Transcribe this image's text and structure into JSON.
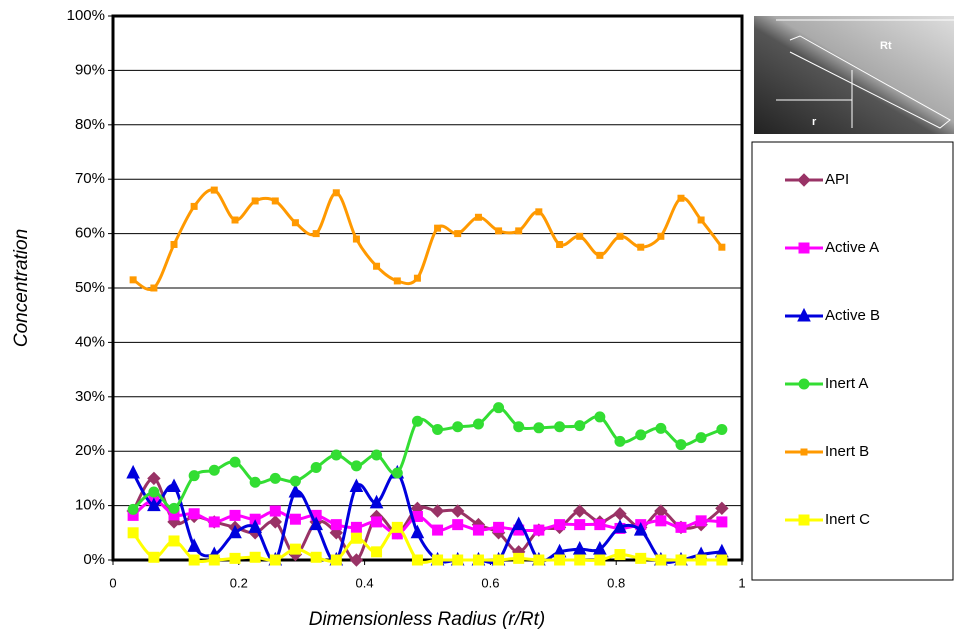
{
  "chart_data": {
    "type": "line",
    "x_label": "Dimensionless Radius (r/Rt)",
    "y_label": "Concentration",
    "inset_labels": [
      "Rt",
      "r"
    ],
    "x": [
      0.032,
      0.065,
      0.097,
      0.129,
      0.161,
      0.194,
      0.226,
      0.258,
      0.29,
      0.323,
      0.355,
      0.387,
      0.419,
      0.452,
      0.484,
      0.516,
      0.548,
      0.581,
      0.613,
      0.645,
      0.677,
      0.71,
      0.742,
      0.774,
      0.806,
      0.839,
      0.871,
      0.903,
      0.935,
      0.968
    ],
    "series": [
      {
        "name": "API",
        "color": "#993366",
        "marker": "diamond",
        "values": [
          9,
          15,
          7,
          8,
          7,
          6,
          5,
          7,
          1,
          7,
          5,
          0,
          8,
          5,
          9.5,
          9,
          9,
          6.5,
          5,
          1.5,
          5.5,
          6,
          9,
          7,
          8.5,
          6,
          9,
          6,
          6.5,
          9.5
        ]
      },
      {
        "name": "Active A",
        "color": "#ff00ff",
        "marker": "square",
        "values": [
          8.2,
          11,
          8.3,
          8.5,
          7,
          8.2,
          7.5,
          9,
          7.5,
          8.2,
          6.5,
          6,
          7,
          4.8,
          8,
          5.5,
          6.5,
          5.5,
          6,
          5.5,
          5.5,
          6.5,
          6.5,
          6.5,
          5.8,
          6.5,
          7.2,
          6,
          7.2,
          7
        ]
      },
      {
        "name": "Active B",
        "color": "#0000dd",
        "marker": "triangle",
        "values": [
          16,
          10,
          13.5,
          2.5,
          1,
          5,
          6,
          0,
          12.5,
          6.5,
          0,
          13.5,
          10.5,
          16,
          5,
          0,
          0,
          0,
          0,
          6.5,
          0,
          1.5,
          2,
          2,
          6,
          5.5,
          0,
          0,
          1,
          1.5
        ]
      },
      {
        "name": "Inert A",
        "color": "#33dd33",
        "marker": "circle",
        "values": [
          9.3,
          12.5,
          9.5,
          15.5,
          16.5,
          18,
          14.3,
          15,
          14.5,
          17,
          19.3,
          17.3,
          19.3,
          16,
          25.5,
          24,
          24.5,
          25,
          28,
          24.5,
          24.3,
          24.5,
          24.7,
          26.3,
          21.8,
          23,
          24.2,
          21.2,
          22.5,
          24
        ]
      },
      {
        "name": "Inert B",
        "color": "#ff9900",
        "marker": "small-square",
        "values": [
          51.5,
          50,
          58,
          65,
          68,
          62.5,
          66,
          66,
          62,
          60,
          67.5,
          59,
          54,
          51.3,
          51.8,
          61,
          60,
          63,
          60.5,
          60.5,
          64,
          58,
          59.5,
          56,
          59.5,
          57.5,
          59.5,
          66.5,
          62.5,
          57.5
        ]
      },
      {
        "name": "Inert C",
        "color": "#ffff00",
        "marker": "square",
        "values": [
          5,
          0.5,
          3.5,
          0,
          0,
          0.3,
          0.5,
          0,
          2,
          0.5,
          0,
          4,
          1.5,
          6,
          0,
          0,
          0,
          0,
          0,
          0.3,
          0,
          0,
          0,
          0,
          1,
          0.3,
          0,
          0,
          0,
          0
        ]
      }
    ],
    "xlim": [
      0,
      1
    ],
    "xticks": [
      0,
      0.2,
      0.4,
      0.6,
      0.8,
      1
    ],
    "ylim": [
      0,
      100
    ],
    "yticks": [
      {
        "value": 0,
        "label": "0%"
      },
      {
        "value": 10,
        "label": "10%"
      },
      {
        "value": 20,
        "label": "20%"
      },
      {
        "value": 30,
        "label": "30%"
      },
      {
        "value": 40,
        "label": "40%"
      },
      {
        "value": 50,
        "label": "50%"
      },
      {
        "value": 60,
        "label": "60%"
      },
      {
        "value": 70,
        "label": "70%"
      },
      {
        "value": 80,
        "label": "80%"
      },
      {
        "value": 90,
        "label": "90%"
      },
      {
        "value": 100,
        "label": "100%"
      }
    ],
    "grid": true,
    "legend": "right"
  }
}
